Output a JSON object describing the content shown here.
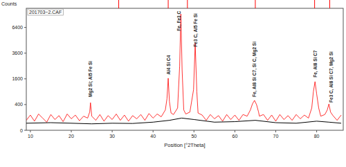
{
  "chart_data": {
    "type": "line",
    "title": "201703~2.CAF",
    "x_label": "Position [°2Theta]",
    "y_label": "Counts",
    "xlim": [
      9,
      86.5
    ],
    "xticks": [
      10,
      20,
      30,
      40,
      50,
      60,
      70,
      80
    ],
    "ylim": [
      0,
      9000
    ],
    "yticks": [
      0,
      400,
      1600,
      3600,
      6400
    ],
    "grid": false,
    "series": [
      {
        "color": "#ff0000",
        "x": [
          9,
          10,
          11,
          12,
          13,
          14,
          15,
          16,
          17,
          18,
          19,
          20,
          21,
          22,
          23,
          24,
          24.5,
          24.7,
          25,
          26,
          27,
          28,
          29,
          30,
          31,
          32,
          33,
          34,
          35,
          36,
          37,
          38,
          39,
          40,
          41,
          42,
          43,
          43.4,
          43.7,
          44,
          44.4,
          45,
          46,
          46.5,
          46.8,
          47.1,
          47.5,
          48,
          49,
          49.9,
          50.3,
          50.7,
          51,
          52,
          53,
          54,
          55,
          56,
          57,
          58,
          59,
          60,
          61,
          62,
          63,
          63.8,
          64.3,
          64.8,
          65.3,
          65.8,
          66,
          67,
          68,
          69,
          70,
          71,
          72,
          73,
          74,
          75,
          76,
          77,
          78,
          78.8,
          79.2,
          79.6,
          80,
          80.5,
          81,
          82,
          82.6,
          83,
          83.4,
          84,
          85,
          86
        ],
        "values": [
          60,
          140,
          50,
          160,
          90,
          40,
          150,
          70,
          130,
          45,
          160,
          80,
          140,
          55,
          120,
          90,
          200,
          460,
          120,
          60,
          150,
          50,
          130,
          70,
          160,
          60,
          140,
          50,
          130,
          80,
          150,
          60,
          170,
          90,
          160,
          110,
          250,
          600,
          1640,
          500,
          180,
          150,
          300,
          2500,
          8200,
          2200,
          250,
          160,
          200,
          1000,
          4600,
          900,
          180,
          140,
          60,
          150,
          80,
          130,
          50,
          150,
          70,
          140,
          60,
          150,
          120,
          250,
          420,
          540,
          400,
          200,
          120,
          150,
          60,
          140,
          50,
          150,
          70,
          130,
          60,
          150,
          80,
          140,
          90,
          300,
          900,
          1430,
          800,
          300,
          120,
          150,
          250,
          420,
          200,
          130,
          60,
          140
        ]
      },
      {
        "color": "#000000",
        "x": [
          9,
          15,
          20,
          25,
          30,
          35,
          40,
          44,
          47,
          50,
          55,
          60,
          65,
          70,
          75,
          80,
          83,
          86
        ],
        "values": [
          30,
          35,
          30,
          25,
          30,
          28,
          40,
          60,
          90,
          70,
          40,
          45,
          60,
          35,
          30,
          50,
          40,
          30
        ]
      }
    ],
    "reference_positions": [
      31.6,
      43.7,
      48.4,
      65.0,
      79.5,
      83.2
    ],
    "reference_color": "#ff0000",
    "annotations": [
      {
        "text": "Mg2 Si; Al5 Fe Si",
        "x": 24.7,
        "y": 670
      },
      {
        "text": "Al4 Si C4",
        "x": 43.7,
        "y": 1870
      },
      {
        "text": "Fe, Fe3 C",
        "x": 46.3,
        "y": 5970
      },
      {
        "text": "Fe3 C, Al5 Fe Si",
        "x": 50.3,
        "y": 4210
      },
      {
        "text": "Fe, Al8 Si C7, Si C, Mg2 Si",
        "x": 64.8,
        "y": 670
      },
      {
        "text": "Fe, Al8 Si C7",
        "x": 79.6,
        "y": 1690
      },
      {
        "text": "Fe3 C, Al8 Si C7, Mg2 Si",
        "x": 83.6,
        "y": 467
      }
    ]
  }
}
